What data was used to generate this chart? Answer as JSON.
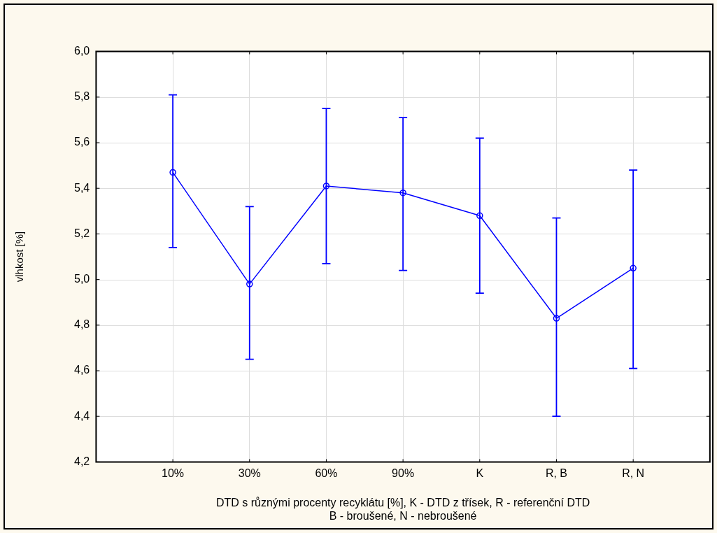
{
  "chart_data": {
    "type": "line",
    "xlabel": "DTD s různými procenty recyklátu [%], K - DTD z třísek, R - referenční DTD\nB - broušené, N - nebroušené",
    "ylabel": "vlhkost [%]",
    "categories": [
      "10%",
      "30%",
      "60%",
      "90%",
      "K",
      "R, B",
      "R, N"
    ],
    "series": [
      {
        "color": "#0000ff",
        "values": [
          5.47,
          4.98,
          5.41,
          5.38,
          5.28,
          4.83,
          5.05
        ],
        "errors": [
          [
            5.14,
            5.81
          ],
          [
            4.65,
            5.32
          ],
          [
            5.07,
            5.75
          ],
          [
            5.04,
            5.71
          ],
          [
            4.94,
            5.62
          ],
          [
            4.4,
            5.27
          ],
          [
            4.61,
            5.48
          ]
        ]
      }
    ],
    "ylim": [
      4.2,
      6.0
    ],
    "yticks": [
      {
        "value": 4.2,
        "label": "4,2"
      },
      {
        "value": 4.4,
        "label": "4,4"
      },
      {
        "value": 4.6,
        "label": "4,6"
      },
      {
        "value": 4.8,
        "label": "4,8"
      },
      {
        "value": 5.0,
        "label": "5,0"
      },
      {
        "value": 5.2,
        "label": "5,2"
      },
      {
        "value": 5.4,
        "label": "5,4"
      },
      {
        "value": 5.6,
        "label": "5,6"
      },
      {
        "value": 5.8,
        "label": "5,8"
      },
      {
        "value": 6.0,
        "label": "6,0"
      }
    ],
    "grid": true,
    "marker": "circle",
    "line_style": "solid"
  }
}
